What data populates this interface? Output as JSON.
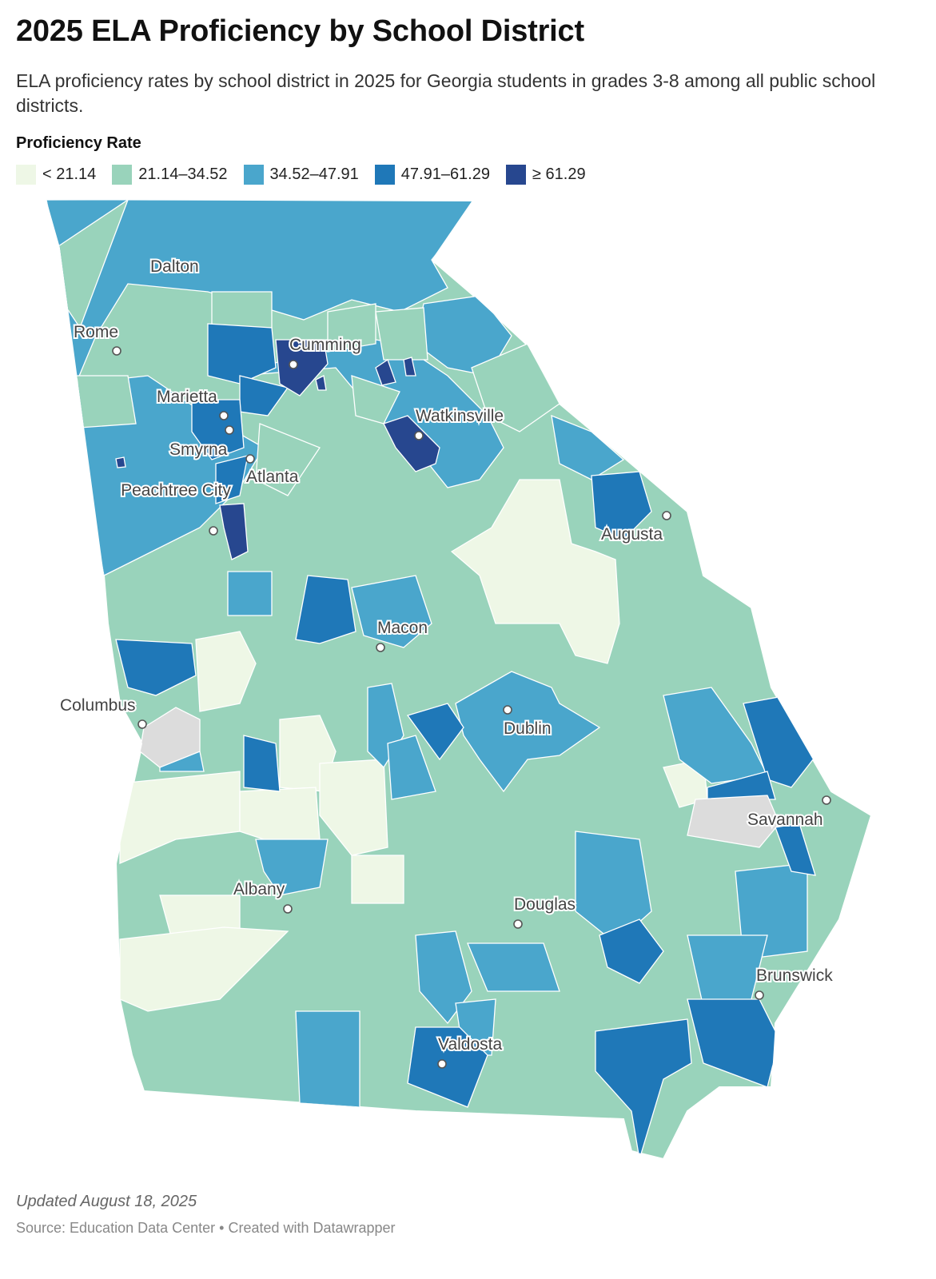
{
  "title": "2025 ELA Proficiency by School District",
  "subtitle": "ELA proficiency rates by school district in 2025 for Georgia students in grades 3-8 among all public school districts.",
  "legend": {
    "title": "Proficiency Rate",
    "items": [
      {
        "label": "< 21.14",
        "color": "#eef7e6"
      },
      {
        "label": "21.14–34.52",
        "color": "#99d3bb"
      },
      {
        "label": "34.52–47.91",
        "color": "#4aa6cc"
      },
      {
        "label": "47.91–61.29",
        "color": "#1f78b8"
      },
      {
        "label": "≥ 61.29",
        "color": "#27478f"
      }
    ]
  },
  "no_data_color": "#dcdcdc",
  "cities": [
    {
      "name": "Dalton"
    },
    {
      "name": "Rome"
    },
    {
      "name": "Cumming"
    },
    {
      "name": "Marietta"
    },
    {
      "name": "Watkinsville"
    },
    {
      "name": "Smyrna"
    },
    {
      "name": "Atlanta"
    },
    {
      "name": "Peachtree City"
    },
    {
      "name": "Augusta"
    },
    {
      "name": "Macon"
    },
    {
      "name": "Columbus"
    },
    {
      "name": "Dublin"
    },
    {
      "name": "Savannah"
    },
    {
      "name": "Albany"
    },
    {
      "name": "Douglas"
    },
    {
      "name": "Brunswick"
    },
    {
      "name": "Valdosta"
    }
  ],
  "footer": {
    "updated": "Updated August 18, 2025",
    "source": "Source: Education Data Center • Created with Datawrapper"
  }
}
